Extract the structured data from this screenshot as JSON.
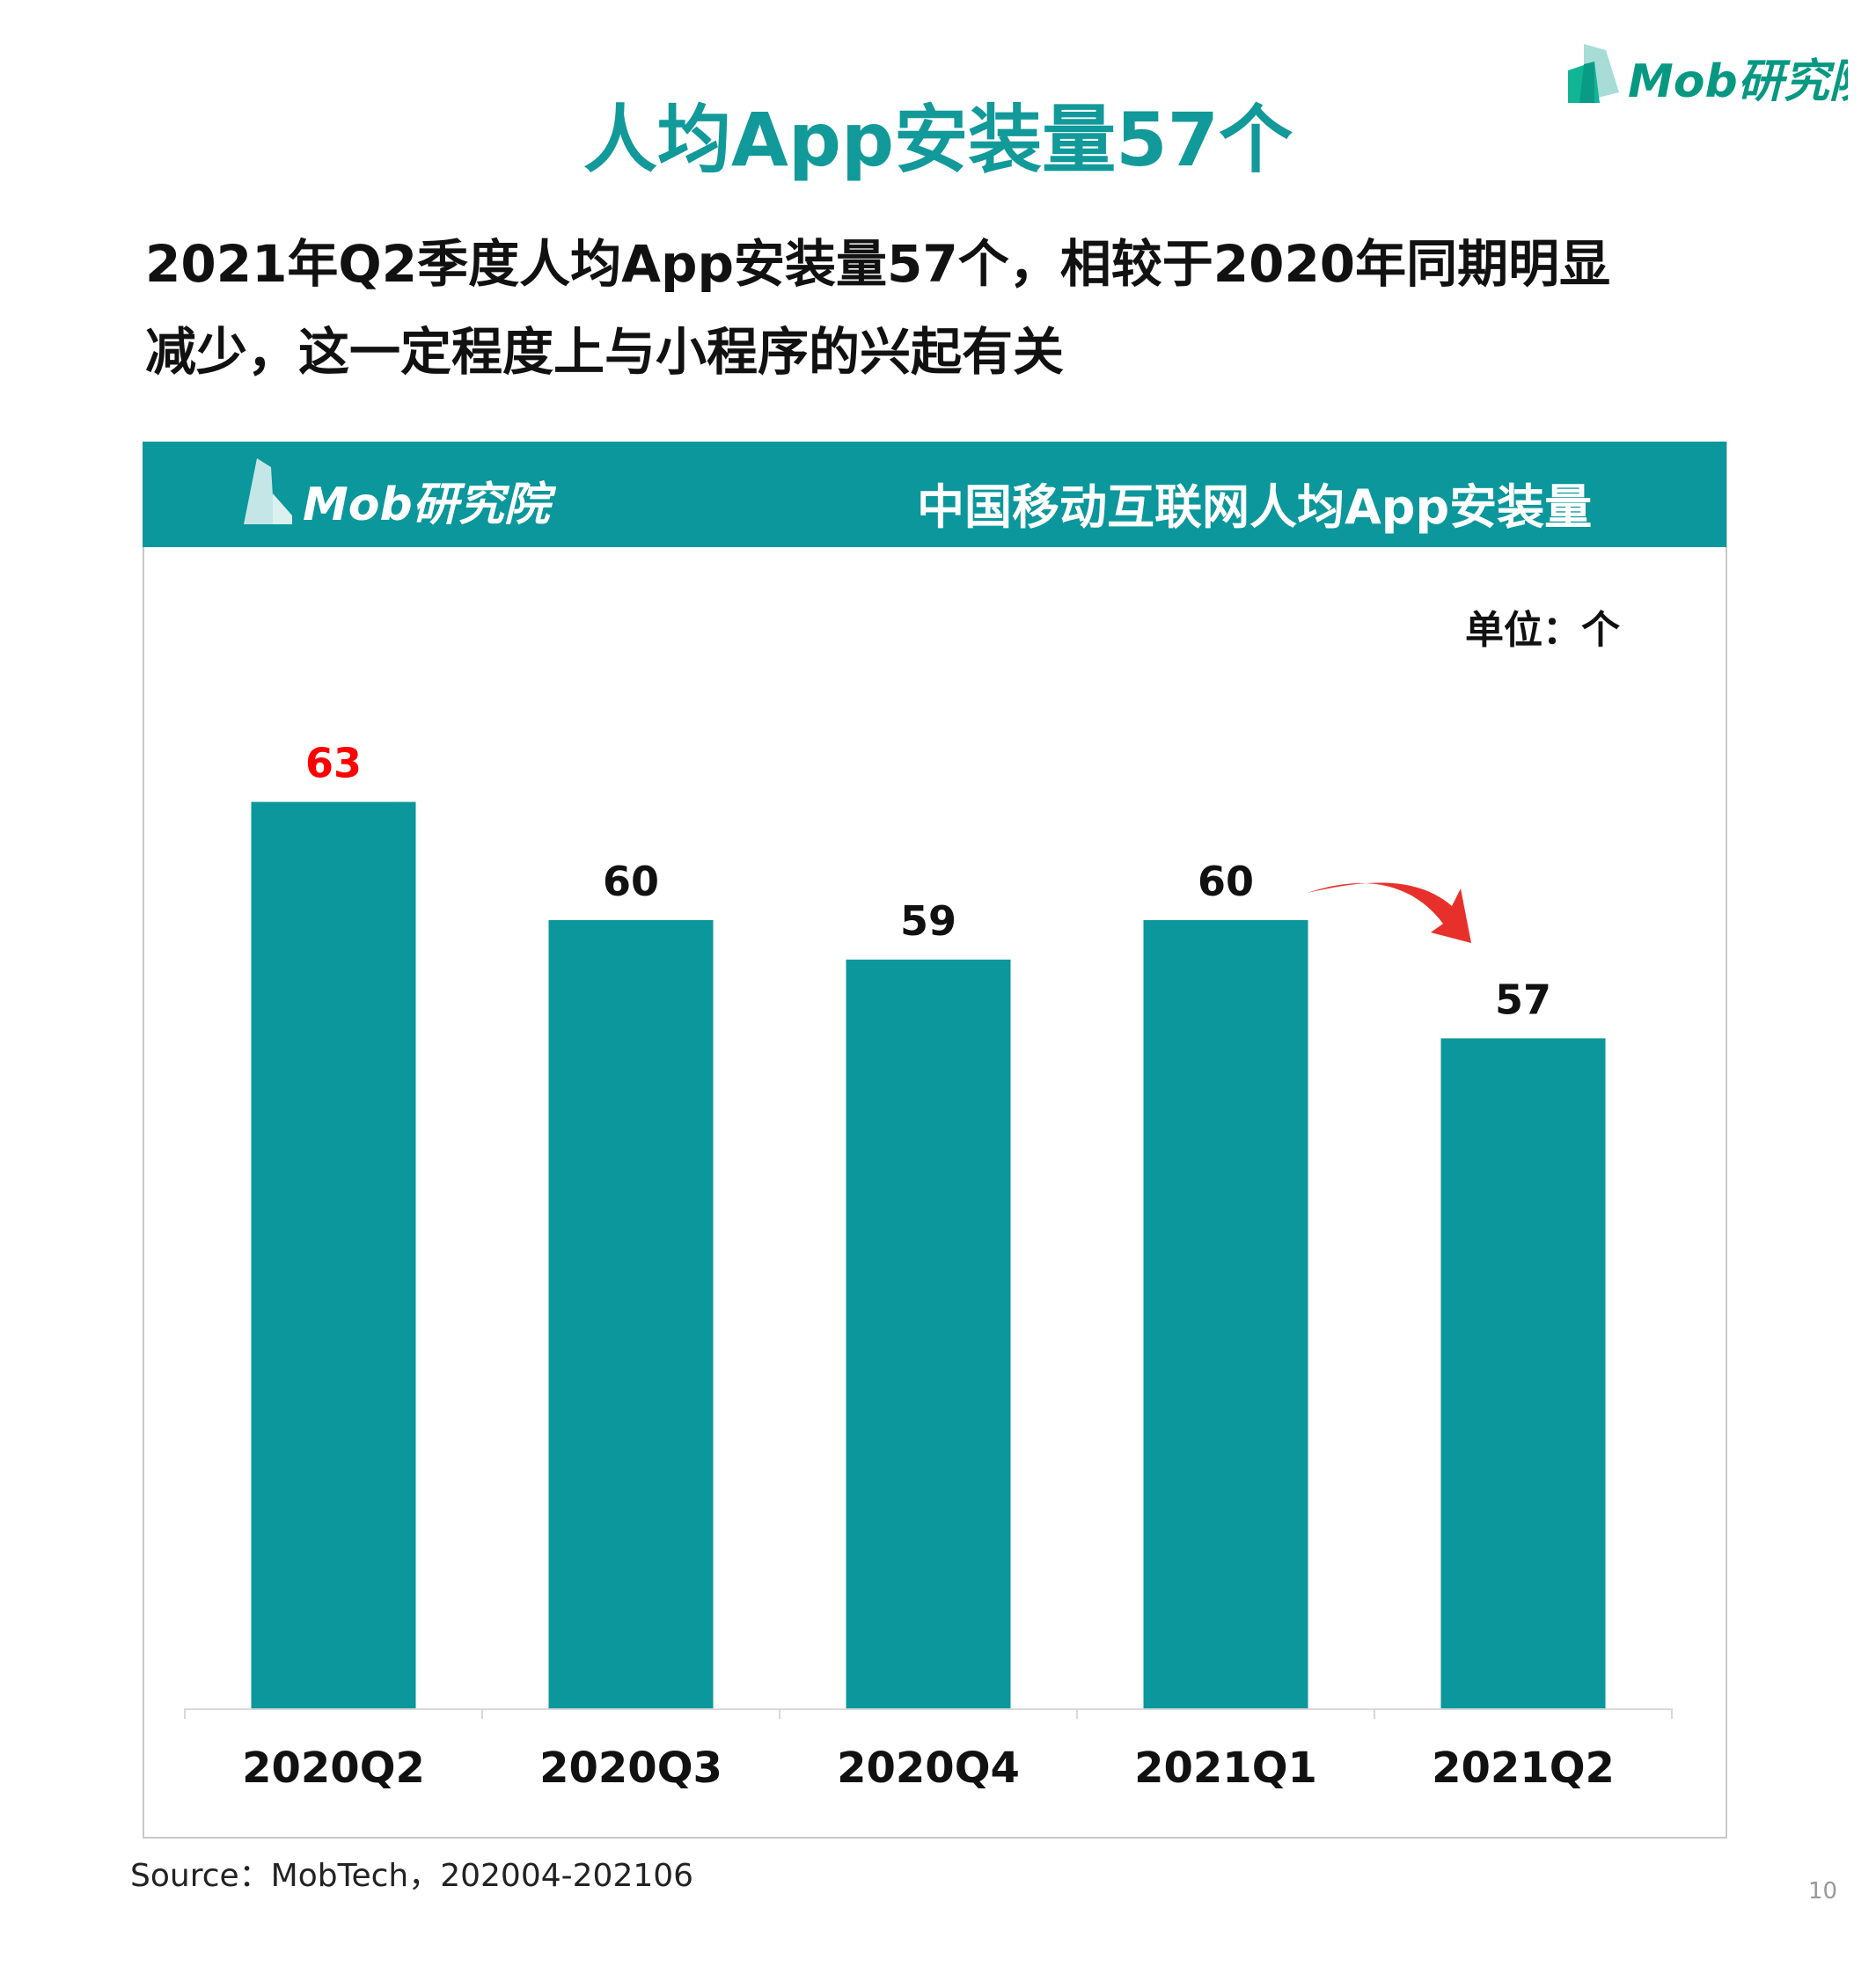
{
  "title": "人均App安装量57个",
  "subtitle_lines": [
    "2021年Q2季度人均App安装量57个，相较于2020年同期明显",
    "减少，这一定程度上与小程序的兴起有关"
  ],
  "logo_text": "Mob研究院",
  "page_number": "10",
  "source": "Source：MobTech，202004-202106",
  "colors": {
    "bar": "#0b979b",
    "title": "#12999a",
    "highlight_label": "#ff0000",
    "arrow": "#e8302a"
  },
  "chart_data": {
    "type": "bar",
    "title": "中国移动互联网人均App安装量",
    "unit_label": "单位：个",
    "categories": [
      "2020Q2",
      "2020Q3",
      "2020Q4",
      "2021Q1",
      "2021Q2"
    ],
    "values": [
      63,
      60,
      59,
      60,
      57
    ],
    "ylim": [
      40,
      65
    ],
    "grid": false,
    "highlighted_label_index": 0,
    "annotation": "red arrow from 2021Q1 to 2021Q2 indicating decrease"
  }
}
